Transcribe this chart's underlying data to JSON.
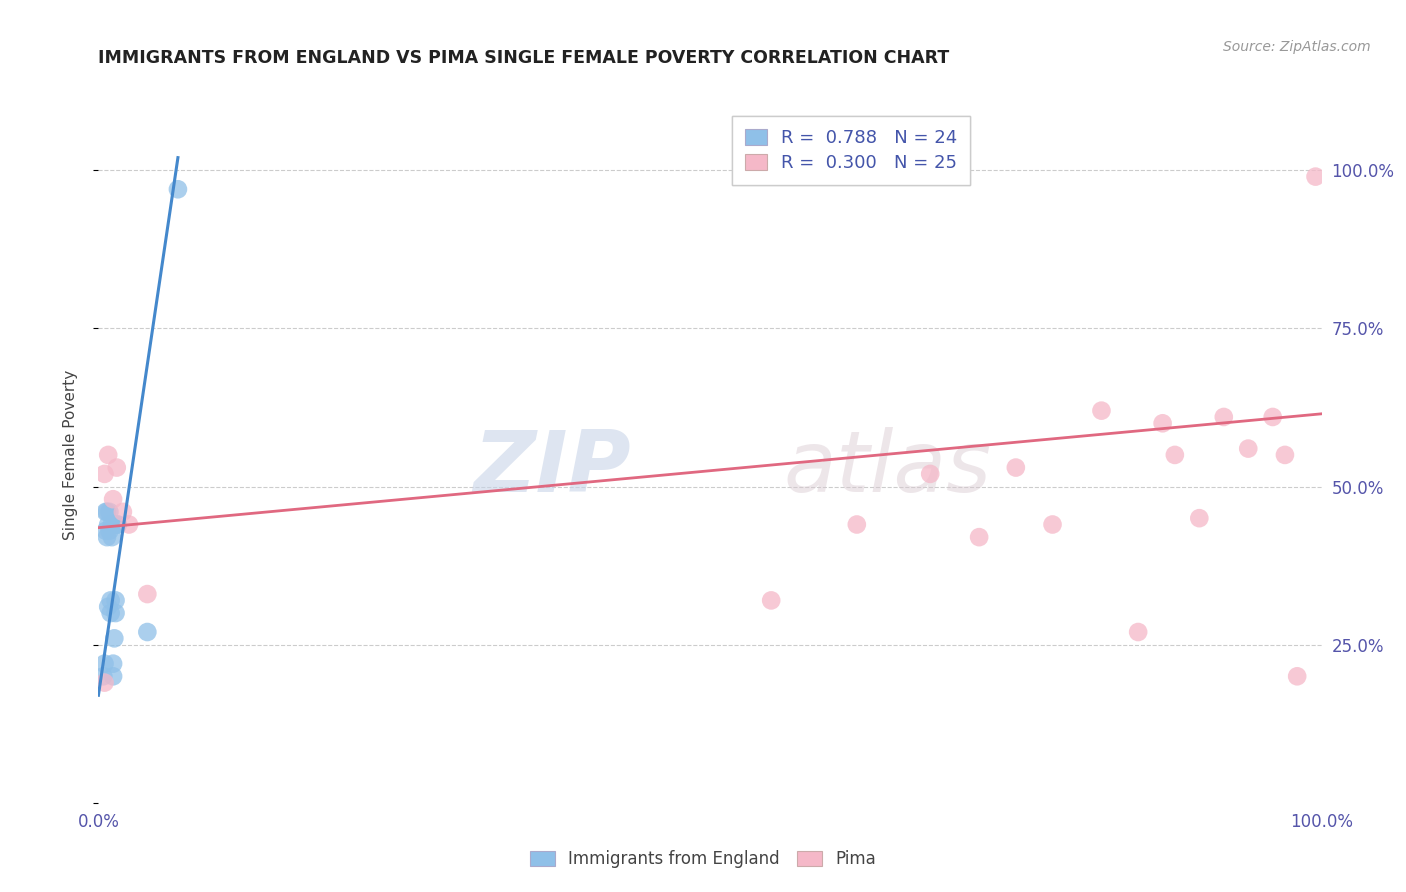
{
  "title": "IMMIGRANTS FROM ENGLAND VS PIMA SINGLE FEMALE POVERTY CORRELATION CHART",
  "source": "Source: ZipAtlas.com",
  "ylabel": "Single Female Poverty",
  "xlim": [
    0,
    1.0
  ],
  "ylim": [
    0.0,
    1.1
  ],
  "blue_color": "#8fc0e8",
  "pink_color": "#f5b8c8",
  "blue_line_color": "#4488cc",
  "pink_line_color": "#e06880",
  "legend_blue_R": "0.788",
  "legend_blue_N": "24",
  "legend_pink_R": "0.300",
  "legend_pink_N": "25",
  "watermark_zip": "ZIP",
  "watermark_atlas": "atlas",
  "blue_x": [
    0.004,
    0.005,
    0.006,
    0.006,
    0.007,
    0.007,
    0.008,
    0.008,
    0.009,
    0.009,
    0.01,
    0.01,
    0.011,
    0.011,
    0.012,
    0.012,
    0.013,
    0.013,
    0.014,
    0.014,
    0.015,
    0.016,
    0.04,
    0.065
  ],
  "blue_y": [
    0.2,
    0.22,
    0.43,
    0.46,
    0.42,
    0.46,
    0.31,
    0.44,
    0.43,
    0.46,
    0.3,
    0.32,
    0.42,
    0.44,
    0.2,
    0.22,
    0.26,
    0.44,
    0.3,
    0.32,
    0.44,
    0.44,
    0.27,
    0.97
  ],
  "pink_x": [
    0.005,
    0.005,
    0.008,
    0.012,
    0.015,
    0.02,
    0.025,
    0.04,
    0.55,
    0.62,
    0.68,
    0.72,
    0.75,
    0.78,
    0.82,
    0.85,
    0.87,
    0.88,
    0.9,
    0.92,
    0.94,
    0.96,
    0.97,
    0.98,
    0.995
  ],
  "pink_y": [
    0.19,
    0.52,
    0.55,
    0.48,
    0.53,
    0.46,
    0.44,
    0.33,
    0.32,
    0.44,
    0.52,
    0.42,
    0.53,
    0.44,
    0.62,
    0.27,
    0.6,
    0.55,
    0.45,
    0.61,
    0.56,
    0.61,
    0.55,
    0.2,
    0.99
  ],
  "blue_trend_x": [
    0.0,
    0.065
  ],
  "blue_trend_y": [
    0.17,
    1.02
  ],
  "pink_trend_x": [
    0.0,
    1.0
  ],
  "pink_trend_y": [
    0.435,
    0.615
  ],
  "ytick_values": [
    0.0,
    0.25,
    0.5,
    0.75,
    1.0
  ],
  "ytick_labels_right": [
    "",
    "25.0%",
    "50.0%",
    "75.0%",
    "100.0%"
  ],
  "xtick_positions": [
    0.0,
    1.0
  ],
  "xtick_labels": [
    "0.0%",
    "100.0%"
  ],
  "grid_lines": [
    0.25,
    0.5,
    0.75,
    1.0
  ]
}
